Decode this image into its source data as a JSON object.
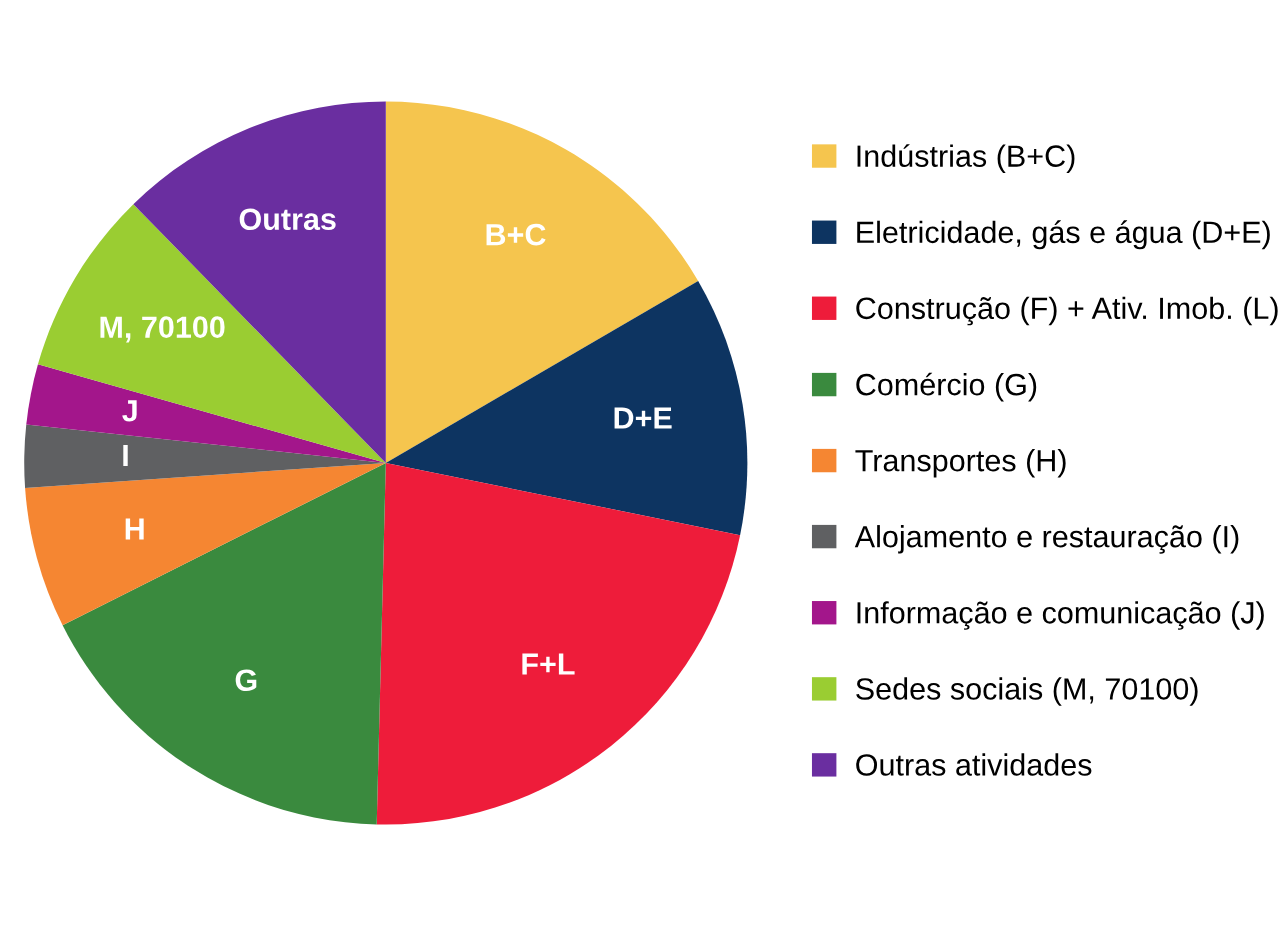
{
  "chart_data": {
    "type": "pie",
    "categories": [
      "Indústrias (B+C)",
      "Eletricidade, gás e água (D+E)",
      "Construção (F) + Ativ. Imob. (L)",
      "Comércio (G)",
      "Transportes (H)",
      "Alojamento e restauração (I)",
      "Informação e comunicação (J)",
      "Sedes sociais (M, 70100)",
      "Outras atividades"
    ],
    "values": [
      16.6,
      11.6,
      22.2,
      17.2,
      6.3,
      2.8,
      2.7,
      8.3,
      12.3
    ],
    "colors": [
      "#f5c54e",
      "#0d3461",
      "#ee1c3a",
      "#3a8a3e",
      "#f58632",
      "#5f6062",
      "#a3168b",
      "#9acd32",
      "#6a2ea0"
    ],
    "annotations": [
      {
        "text": "B+C",
        "x": "Indústrias (B+C)"
      },
      {
        "text": "D+E",
        "x": "Eletricidade, gás e água (D+E)"
      },
      {
        "text": "F+L",
        "x": "Construção (F) + Ativ. Imob. (L)"
      },
      {
        "text": "G",
        "x": "Comércio (G)"
      },
      {
        "text": "H",
        "x": "Transportes (H)"
      },
      {
        "text": "I",
        "x": "Alojamento e restauração (I)"
      },
      {
        "text": "J",
        "x": "Informação e comunicação (J)"
      },
      {
        "text": "M, 70100",
        "x": "Sedes sociais (M, 70100)"
      },
      {
        "text": "Outras",
        "x": "Outras atividades"
      }
    ],
    "legend": "right"
  }
}
